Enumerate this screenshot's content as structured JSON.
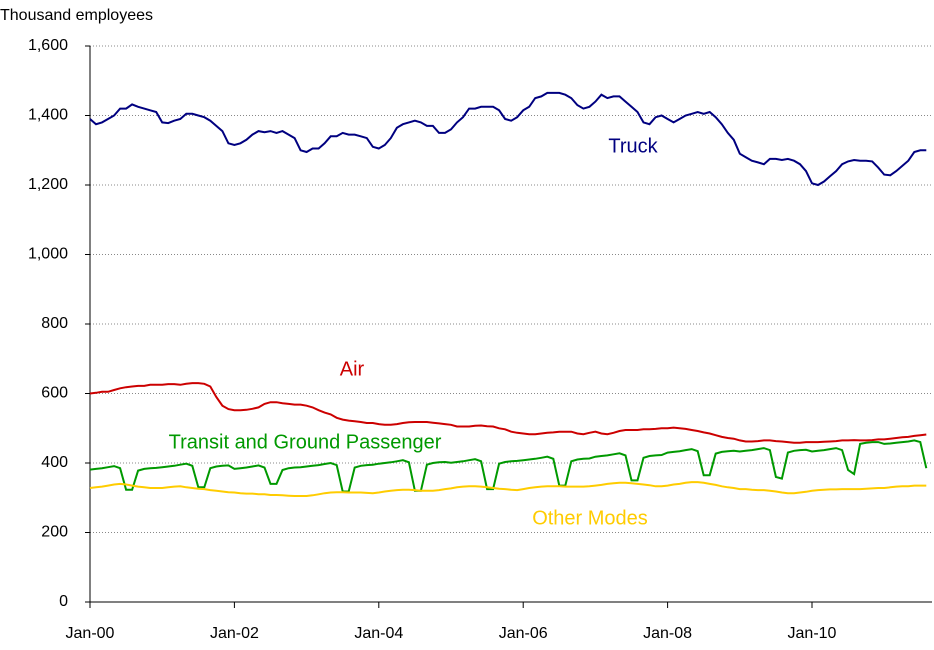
{
  "chart_data": {
    "type": "line",
    "ylabel": "Thousand employees",
    "categories": [
      "Jan-00",
      null,
      null,
      null,
      null,
      null,
      null,
      null,
      null,
      null,
      null,
      null,
      null,
      null,
      null,
      null,
      null,
      null,
      null,
      null,
      null,
      null,
      null,
      null,
      "Jan-02",
      null,
      null,
      null,
      null,
      null,
      null,
      null,
      null,
      null,
      null,
      null,
      null,
      null,
      null,
      null,
      null,
      null,
      null,
      null,
      null,
      null,
      null,
      null,
      "Jan-04",
      null,
      null,
      null,
      null,
      null,
      null,
      null,
      null,
      null,
      null,
      null,
      null,
      null,
      null,
      null,
      null,
      null,
      null,
      null,
      null,
      null,
      null,
      null,
      "Jan-06",
      null,
      null,
      null,
      null,
      null,
      null,
      null,
      null,
      null,
      null,
      null,
      null,
      null,
      null,
      null,
      null,
      null,
      null,
      null,
      null,
      null,
      null,
      null,
      "Jan-08",
      null,
      null,
      null,
      null,
      null,
      null,
      null,
      null,
      null,
      null,
      null,
      null,
      null,
      null,
      null,
      null,
      null,
      null,
      null,
      null,
      null,
      null,
      null,
      "Jan-10",
      null,
      null,
      null,
      null,
      null,
      null,
      null,
      null,
      null,
      null,
      null,
      null,
      null,
      null,
      null,
      null,
      null,
      null,
      null
    ],
    "ylim": [
      0,
      1600
    ],
    "yticks": [
      0,
      200,
      400,
      600,
      800,
      {
        "value": 1000,
        "label": "1,000"
      },
      {
        "value": 1200,
        "label": "1,200"
      },
      {
        "value": 1400,
        "label": "1,400"
      },
      {
        "value": 1600,
        "label": "1,600"
      }
    ],
    "grid": true,
    "series": [
      {
        "name": "Truck",
        "color": "#000080",
        "values": [
          1390,
          1375,
          1380,
          1390,
          1400,
          1420,
          1420,
          1432,
          1425,
          1420,
          1415,
          1410,
          1380,
          1378,
          1385,
          1390,
          1405,
          1405,
          1400,
          1395,
          1385,
          1370,
          1355,
          1320,
          1315,
          1320,
          1330,
          1345,
          1355,
          1352,
          1355,
          1350,
          1355,
          1345,
          1335,
          1300,
          1295,
          1305,
          1305,
          1320,
          1340,
          1340,
          1350,
          1345,
          1345,
          1340,
          1335,
          1310,
          1305,
          1315,
          1335,
          1365,
          1375,
          1380,
          1385,
          1380,
          1370,
          1370,
          1350,
          1350,
          1360,
          1380,
          1395,
          1420,
          1420,
          1425,
          1425,
          1425,
          1415,
          1390,
          1385,
          1395,
          1415,
          1425,
          1450,
          1455,
          1465,
          1465,
          1465,
          1460,
          1450,
          1430,
          1420,
          1425,
          1440,
          1460,
          1450,
          1455,
          1455,
          1440,
          1425,
          1410,
          1380,
          1375,
          1395,
          1400,
          1390,
          1380,
          1390,
          1400,
          1405,
          1410,
          1405,
          1410,
          1395,
          1375,
          1350,
          1330,
          1290,
          1280,
          1270,
          1265,
          1260,
          1275,
          1275,
          1272,
          1275,
          1270,
          1260,
          1240,
          1205,
          1200,
          1210,
          1225,
          1240,
          1260,
          1268,
          1272,
          1270,
          1270,
          1268,
          1250,
          1230,
          1228,
          1240,
          1255,
          1270,
          1295,
          1300,
          1300
        ]
      },
      {
        "name": "Air",
        "color": "#cc0000",
        "values": [
          600,
          602,
          605,
          605,
          610,
          615,
          618,
          620,
          622,
          622,
          625,
          625,
          625,
          627,
          627,
          625,
          628,
          630,
          630,
          628,
          620,
          590,
          565,
          555,
          552,
          552,
          553,
          556,
          560,
          570,
          575,
          575,
          572,
          570,
          568,
          568,
          565,
          560,
          552,
          545,
          540,
          530,
          525,
          522,
          520,
          518,
          515,
          515,
          512,
          510,
          510,
          512,
          515,
          517,
          518,
          518,
          518,
          516,
          514,
          512,
          510,
          505,
          505,
          505,
          507,
          508,
          506,
          505,
          500,
          497,
          490,
          487,
          485,
          483,
          483,
          485,
          487,
          488,
          490,
          490,
          490,
          485,
          483,
          487,
          490,
          485,
          483,
          487,
          492,
          495,
          495,
          495,
          497,
          497,
          498,
          500,
          500,
          502,
          500,
          498,
          495,
          492,
          488,
          485,
          480,
          475,
          472,
          470,
          465,
          462,
          462,
          463,
          465,
          465,
          463,
          462,
          460,
          458,
          458,
          460,
          460,
          460,
          461,
          462,
          463,
          465,
          465,
          466,
          465,
          465,
          466,
          468,
          468,
          470,
          472,
          474,
          475,
          478,
          480,
          482
        ]
      },
      {
        "name": "Transit and Ground Passenger",
        "color": "#009900",
        "values": [
          381,
          383,
          385,
          388,
          391,
          385,
          323,
          323,
          378,
          383,
          385,
          386,
          388,
          390,
          392,
          395,
          398,
          392,
          330,
          330,
          385,
          390,
          392,
          393,
          383,
          385,
          387,
          390,
          393,
          387,
          340,
          340,
          380,
          385,
          387,
          388,
          390,
          392,
          394,
          397,
          400,
          394,
          318,
          318,
          387,
          392,
          394,
          395,
          398,
          400,
          402,
          405,
          408,
          402,
          320,
          320,
          395,
          400,
          402,
          403,
          401,
          403,
          405,
          408,
          411,
          405,
          325,
          325,
          398,
          403,
          405,
          406,
          408,
          410,
          412,
          415,
          418,
          412,
          335,
          335,
          405,
          410,
          412,
          413,
          418,
          420,
          422,
          425,
          428,
          422,
          350,
          350,
          415,
          420,
          422,
          423,
          430,
          432,
          434,
          437,
          440,
          434,
          365,
          365,
          427,
          432,
          434,
          435,
          433,
          435,
          437,
          440,
          443,
          437,
          360,
          355,
          430,
          435,
          437,
          438,
          433,
          435,
          437,
          440,
          443,
          437,
          380,
          368,
          455,
          458,
          460,
          460,
          455,
          456,
          458,
          460,
          462,
          465,
          460,
          385
        ]
      },
      {
        "name": "Other Modes",
        "color": "#ffcc00",
        "values": [
          328,
          330,
          332,
          335,
          338,
          340,
          338,
          335,
          332,
          330,
          328,
          328,
          328,
          330,
          332,
          333,
          330,
          328,
          326,
          325,
          322,
          320,
          318,
          316,
          315,
          313,
          312,
          312,
          310,
          310,
          308,
          308,
          307,
          306,
          305,
          305,
          305,
          307,
          310,
          313,
          315,
          316,
          316,
          315,
          315,
          315,
          314,
          313,
          315,
          318,
          320,
          322,
          323,
          323,
          322,
          320,
          320,
          320,
          322,
          325,
          327,
          330,
          332,
          333,
          333,
          332,
          330,
          328,
          326,
          325,
          323,
          322,
          325,
          328,
          330,
          332,
          333,
          333,
          333,
          332,
          332,
          332,
          332,
          333,
          335,
          337,
          340,
          342,
          343,
          343,
          342,
          340,
          338,
          336,
          333,
          333,
          335,
          338,
          340,
          343,
          345,
          345,
          343,
          340,
          337,
          333,
          330,
          328,
          325,
          325,
          323,
          322,
          322,
          320,
          318,
          315,
          313,
          313,
          315,
          317,
          320,
          322,
          323,
          324,
          324,
          325,
          325,
          325,
          325,
          326,
          327,
          328,
          328,
          330,
          332,
          333,
          333,
          335,
          335,
          335
        ]
      }
    ]
  }
}
